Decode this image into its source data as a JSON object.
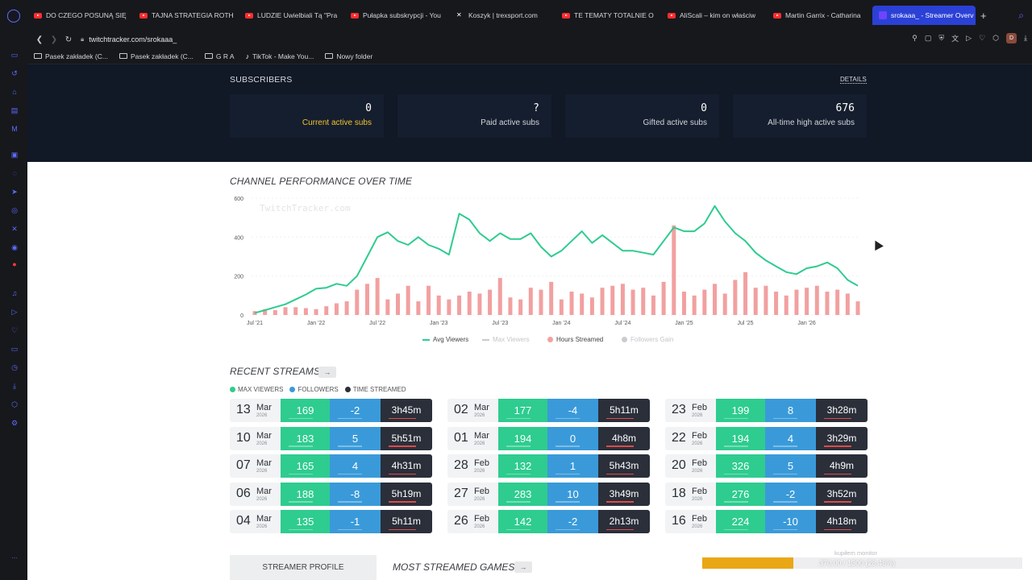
{
  "browser": {
    "tabs": [
      {
        "title": "DO CZEGO POSUNĄ SIĘ",
        "icon": "youtube-icon"
      },
      {
        "title": "TAJNA STRATEGIA ROTH",
        "icon": "youtube-icon"
      },
      {
        "title": "LUDZIE Uwielbiali Tą \"Pra",
        "icon": "youtube-icon"
      },
      {
        "title": "Pułapka subskrypcji - You",
        "icon": "youtube-icon"
      },
      {
        "title": "Koszyk | trexsport.com",
        "icon": "trexsport-icon"
      },
      {
        "title": "TE TEMATY TOTALNIE O",
        "icon": "youtube-icon"
      },
      {
        "title": "AliScali – kim on właściw",
        "icon": "youtube-icon"
      },
      {
        "title": "Martin Garrix - Catharina",
        "icon": "youtube-icon"
      },
      {
        "title": "srokaaa_ - Streamer Overv",
        "icon": "twitchtracker-icon",
        "active": true
      }
    ],
    "new_tab": "+",
    "url": "twitchtracker.com/srokaaa_",
    "profile_initial": "D",
    "bookmarks": [
      {
        "label": "Pasek zakładek (C...",
        "icon": "folder-icon"
      },
      {
        "label": "Pasek zakładek (C...",
        "icon": "folder-icon"
      },
      {
        "label": "G R A",
        "icon": "folder-icon"
      },
      {
        "label": "TikTok - Make You...",
        "icon": "tiktok-icon"
      },
      {
        "label": "Nowy folder",
        "icon": "folder-icon"
      }
    ]
  },
  "subscribers": {
    "title": "SUBSCRIBERS",
    "details": "DETAILS",
    "cards": [
      {
        "value": "0",
        "label": "Current active subs",
        "highlight": true
      },
      {
        "value": "?",
        "label": "Paid active subs"
      },
      {
        "value": "0",
        "label": "Gifted active subs"
      },
      {
        "value": "676",
        "label": "All-time high active subs"
      }
    ]
  },
  "performance": {
    "title": "CHANNEL PERFORMANCE OVER TIME",
    "watermark": "TwitchTracker.com"
  },
  "chart_data": {
    "type": "line",
    "title": "CHANNEL PERFORMANCE OVER TIME",
    "y_ticks": [
      0,
      200,
      400,
      600
    ],
    "ylim": [
      0,
      600
    ],
    "x_tick_labels": [
      "Jul '21",
      "Jan '22",
      "Jul '22",
      "Jan '23",
      "Jul '23",
      "Jan '24",
      "Jul '24",
      "Jan '25",
      "Jul '25",
      "Jan '26"
    ],
    "x_range_months": [
      0,
      59
    ],
    "legend": [
      {
        "name": "Avg Viewers",
        "color": "#2ecc8f",
        "active": true
      },
      {
        "name": "Max Viewers",
        "color": "#c9cbd0",
        "active": false
      },
      {
        "name": "Hours Streamed",
        "color": "#f2a0a0",
        "active": true
      },
      {
        "name": "Followers Gain",
        "color": "#c9cbd0",
        "active": false
      }
    ],
    "series": [
      {
        "name": "Avg Viewers",
        "points": [
          [
            0,
            10
          ],
          [
            1,
            25
          ],
          [
            2,
            40
          ],
          [
            3,
            55
          ],
          [
            4,
            80
          ],
          [
            5,
            105
          ],
          [
            6,
            135
          ],
          [
            7,
            140
          ],
          [
            8,
            160
          ],
          [
            9,
            150
          ],
          [
            10,
            200
          ],
          [
            11,
            300
          ],
          [
            12,
            400
          ],
          [
            13,
            425
          ],
          [
            14,
            380
          ],
          [
            15,
            360
          ],
          [
            16,
            400
          ],
          [
            17,
            360
          ],
          [
            18,
            340
          ],
          [
            19,
            310
          ],
          [
            20,
            520
          ],
          [
            21,
            490
          ],
          [
            22,
            420
          ],
          [
            23,
            380
          ],
          [
            24,
            420
          ],
          [
            25,
            390
          ],
          [
            26,
            390
          ],
          [
            27,
            420
          ],
          [
            28,
            350
          ],
          [
            29,
            300
          ],
          [
            30,
            330
          ],
          [
            31,
            380
          ],
          [
            32,
            430
          ],
          [
            33,
            370
          ],
          [
            34,
            410
          ],
          [
            35,
            370
          ],
          [
            36,
            330
          ],
          [
            37,
            330
          ],
          [
            38,
            320
          ],
          [
            39,
            310
          ],
          [
            40,
            380
          ],
          [
            41,
            450
          ],
          [
            42,
            430
          ],
          [
            43,
            430
          ],
          [
            44,
            470
          ],
          [
            45,
            560
          ],
          [
            46,
            480
          ],
          [
            47,
            420
          ],
          [
            48,
            380
          ],
          [
            49,
            320
          ],
          [
            50,
            280
          ],
          [
            51,
            250
          ],
          [
            52,
            220
          ],
          [
            53,
            210
          ],
          [
            54,
            240
          ],
          [
            55,
            250
          ],
          [
            56,
            270
          ],
          [
            57,
            240
          ],
          [
            58,
            180
          ],
          [
            59,
            150
          ]
        ]
      },
      {
        "name": "Hours Streamed",
        "values": [
          20,
          30,
          25,
          40,
          40,
          35,
          30,
          45,
          60,
          70,
          130,
          160,
          190,
          80,
          110,
          150,
          70,
          150,
          100,
          80,
          100,
          120,
          110,
          130,
          190,
          90,
          80,
          140,
          130,
          170,
          80,
          120,
          110,
          90,
          140,
          150,
          160,
          130,
          140,
          100,
          170,
          460,
          120,
          100,
          130,
          160,
          110,
          180,
          220,
          140,
          150,
          120,
          100,
          130,
          140,
          150,
          120,
          130,
          110,
          70
        ]
      }
    ]
  },
  "recent_streams": {
    "title": "RECENT STREAMS",
    "arrow": "→",
    "legend": [
      {
        "label": "MAX VIEWERS",
        "color": "#2ecc8f"
      },
      {
        "label": "FOLLOWERS",
        "color": "#3a9ad9"
      },
      {
        "label": "TIME STREAMED",
        "color": "#2a2f3a"
      }
    ],
    "streams": [
      {
        "day": "13",
        "month": "Mar",
        "year": "2026",
        "max": "169",
        "followers": "-2",
        "time": "3h45m"
      },
      {
        "day": "10",
        "month": "Mar",
        "year": "2026",
        "max": "183",
        "followers": "5",
        "time": "5h51m"
      },
      {
        "day": "07",
        "month": "Mar",
        "year": "2026",
        "max": "165",
        "followers": "4",
        "time": "4h31m"
      },
      {
        "day": "06",
        "month": "Mar",
        "year": "2026",
        "max": "188",
        "followers": "-8",
        "time": "5h19m"
      },
      {
        "day": "04",
        "month": "Mar",
        "year": "2026",
        "max": "135",
        "followers": "-1",
        "time": "5h11m"
      },
      {
        "day": "02",
        "month": "Mar",
        "year": "2026",
        "max": "177",
        "followers": "-4",
        "time": "5h11m"
      },
      {
        "day": "01",
        "month": "Mar",
        "year": "2026",
        "max": "194",
        "followers": "0",
        "time": "4h8m"
      },
      {
        "day": "28",
        "month": "Feb",
        "year": "2026",
        "max": "132",
        "followers": "1",
        "time": "5h43m"
      },
      {
        "day": "27",
        "month": "Feb",
        "year": "2026",
        "max": "283",
        "followers": "10",
        "time": "3h49m"
      },
      {
        "day": "26",
        "month": "Feb",
        "year": "2026",
        "max": "142",
        "followers": "-2",
        "time": "2h13m"
      },
      {
        "day": "23",
        "month": "Feb",
        "year": "2026",
        "max": "199",
        "followers": "8",
        "time": "3h28m"
      },
      {
        "day": "22",
        "month": "Feb",
        "year": "2026",
        "max": "194",
        "followers": "4",
        "time": "3h29m"
      },
      {
        "day": "20",
        "month": "Feb",
        "year": "2026",
        "max": "326",
        "followers": "5",
        "time": "4h9m"
      },
      {
        "day": "18",
        "month": "Feb",
        "year": "2026",
        "max": "276",
        "followers": "-2",
        "time": "3h52m"
      },
      {
        "day": "16",
        "month": "Feb",
        "year": "2026",
        "max": "224",
        "followers": "-10",
        "time": "4h18m"
      }
    ]
  },
  "bottom": {
    "profile_tab": "STREAMER PROFILE",
    "most_streamed": "MOST STREAMED GAMES",
    "arrow": "→"
  },
  "overlay": {
    "label": "kupiłem monitor",
    "progress_text": "370.00 / 1300 (28.46%)",
    "progress_fraction": 0.2846
  },
  "colors": {
    "accent": "#2b41d6",
    "avg_viewers": "#2ecc8f",
    "followers": "#3a9ad9",
    "hours": "#f2a0a0",
    "time": "#2a2f3a",
    "highlight": "#f2c230",
    "progress": "#e9a716"
  }
}
